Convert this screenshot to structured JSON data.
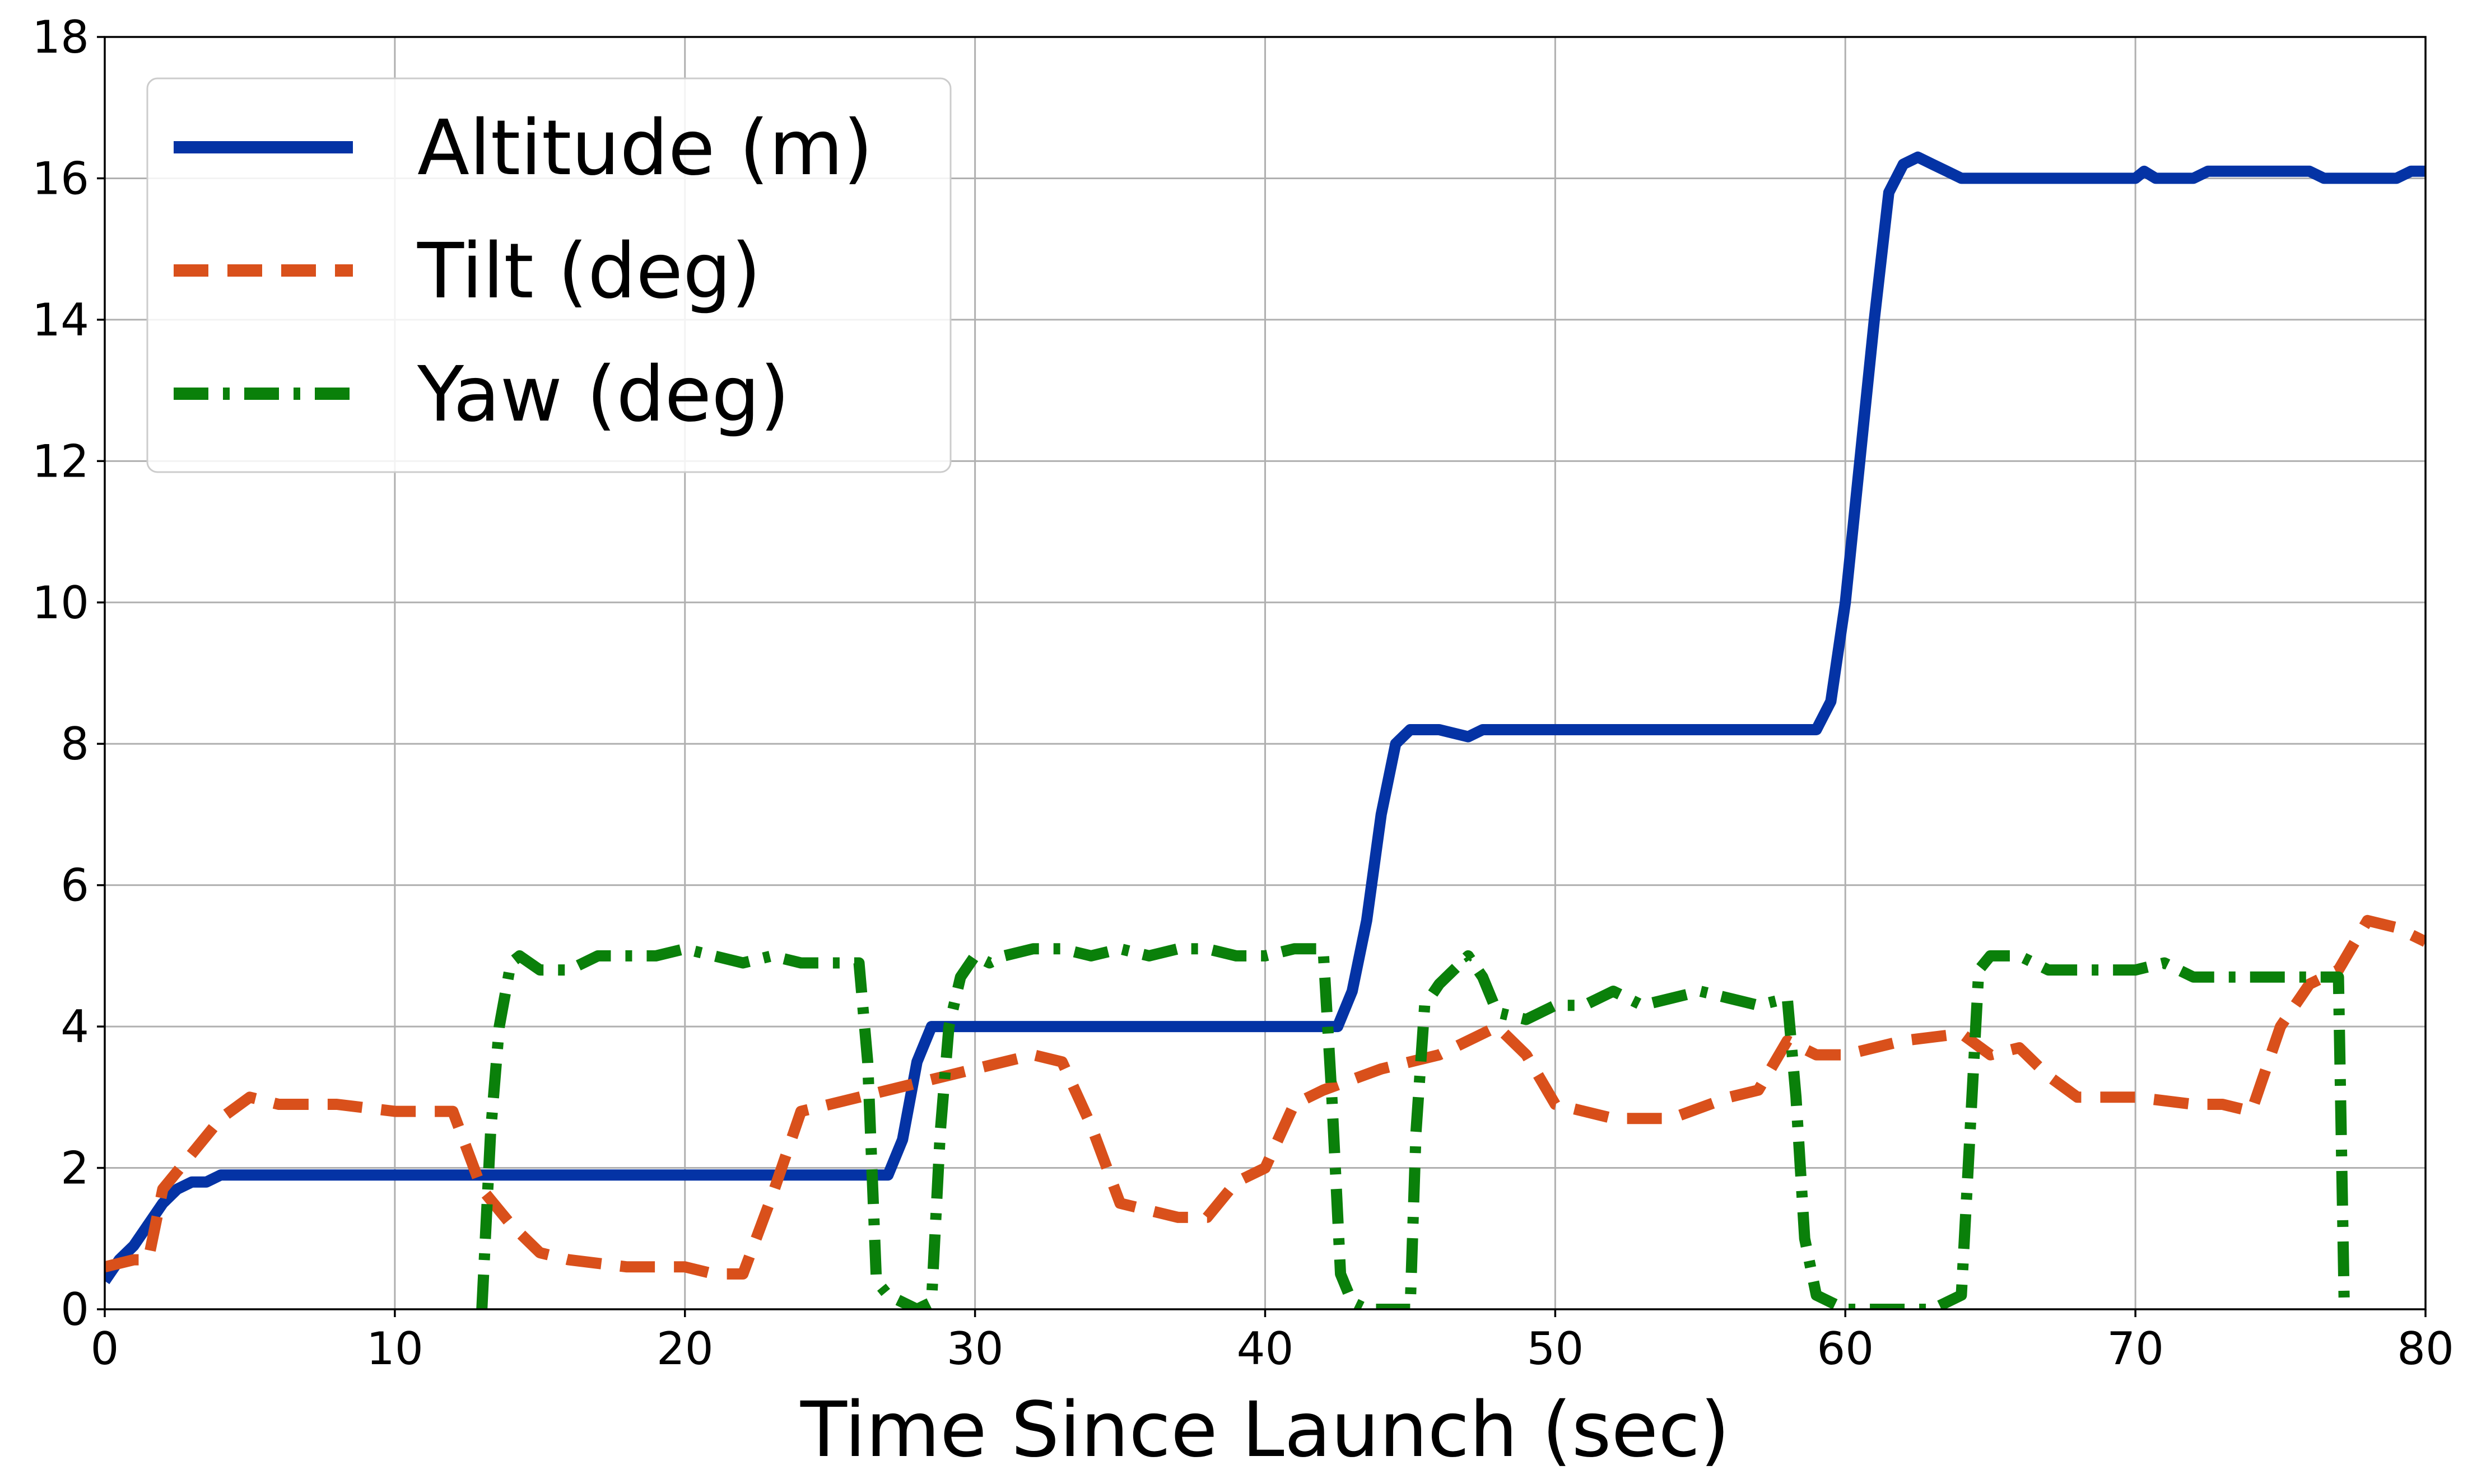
{
  "chart_data": {
    "type": "line",
    "title": "",
    "xlabel": "Time Since Launch (sec)",
    "ylabel": "",
    "xlim": [
      0,
      80
    ],
    "ylim": [
      0,
      18
    ],
    "xticks": [
      0,
      10,
      20,
      30,
      40,
      50,
      60,
      70,
      80
    ],
    "yticks": [
      0,
      2,
      4,
      6,
      8,
      10,
      12,
      14,
      16,
      18
    ],
    "grid": true,
    "legend_position": "top-left",
    "series": [
      {
        "name": "Altitude (m)",
        "color": "#0433a5",
        "style": "solid",
        "x": [
          0,
          0.5,
          1,
          1.5,
          2,
          2.5,
          3,
          3.5,
          4,
          6,
          10,
          15,
          20,
          25,
          27,
          27.5,
          28,
          28.5,
          29,
          30,
          35,
          40,
          42.5,
          43,
          43.5,
          44,
          44.5,
          45,
          46,
          47,
          47.5,
          50,
          55,
          59,
          59.5,
          60,
          60.5,
          61,
          61.5,
          62,
          62.5,
          63,
          63.5,
          64,
          66,
          70,
          70.3,
          70.7,
          71,
          72,
          72.5,
          75,
          76,
          76.5,
          79,
          79.5,
          80
        ],
        "y": [
          0.4,
          0.7,
          0.9,
          1.2,
          1.5,
          1.7,
          1.8,
          1.8,
          1.9,
          1.9,
          1.9,
          1.9,
          1.9,
          1.9,
          1.9,
          2.4,
          3.5,
          4.0,
          4.0,
          4.0,
          4.0,
          4.0,
          4.0,
          4.5,
          5.5,
          7.0,
          8.0,
          8.2,
          8.2,
          8.1,
          8.2,
          8.2,
          8.2,
          8.2,
          8.6,
          10.0,
          12.0,
          14.0,
          15.8,
          16.2,
          16.3,
          16.2,
          16.1,
          16.0,
          16.0,
          16.0,
          16.1,
          16.0,
          16.0,
          16.0,
          16.1,
          16.1,
          16.1,
          16.0,
          16.0,
          16.1,
          16.1
        ]
      },
      {
        "name": "Tilt (deg)",
        "color": "#d9501b",
        "style": "dashed",
        "x": [
          0,
          1,
          1.5,
          2,
          3,
          4,
          5,
          6,
          8,
          10,
          11,
          12,
          13,
          14,
          15,
          16,
          18,
          20,
          21,
          22,
          23,
          24,
          26,
          28,
          30,
          32,
          33,
          34,
          35,
          36,
          37,
          38,
          39,
          40,
          41,
          42,
          44,
          46,
          48,
          49,
          50,
          52,
          54,
          56,
          57,
          58,
          59,
          60,
          62,
          64,
          65,
          66,
          67,
          68,
          70,
          72,
          73,
          74,
          75,
          76,
          77,
          78,
          79,
          80
        ],
        "y": [
          0.6,
          0.7,
          0.7,
          1.7,
          2.2,
          2.7,
          3.0,
          2.9,
          2.9,
          2.8,
          2.8,
          2.8,
          1.7,
          1.2,
          0.8,
          0.7,
          0.6,
          0.6,
          0.5,
          0.5,
          1.6,
          2.8,
          3.0,
          3.2,
          3.4,
          3.6,
          3.5,
          2.6,
          1.5,
          1.4,
          1.3,
          1.3,
          1.8,
          2.0,
          2.9,
          3.1,
          3.4,
          3.6,
          4.0,
          3.6,
          2.9,
          2.7,
          2.7,
          3.0,
          3.1,
          3.8,
          3.6,
          3.6,
          3.8,
          3.9,
          3.6,
          3.7,
          3.3,
          3.0,
          3.0,
          2.9,
          2.9,
          2.8,
          4.0,
          4.6,
          4.8,
          5.5,
          5.4,
          5.2
        ]
      },
      {
        "name": "Yaw (deg)",
        "color": "#0a800a",
        "style": "dashdot",
        "x": [
          13,
          13.3,
          13.6,
          14,
          14.3,
          15,
          16,
          17,
          18,
          19,
          20,
          21,
          22,
          23,
          24,
          25,
          26,
          26.3,
          26.6,
          27,
          27.5,
          28,
          28.5,
          28.8,
          29.1,
          29.5,
          30,
          30.5,
          31,
          32,
          33,
          34,
          35,
          36,
          37,
          38,
          39,
          40,
          41,
          42,
          42.3,
          42.6,
          43,
          43.5,
          44,
          45,
          45.2,
          45.5,
          46,
          46.5,
          47,
          47.5,
          48,
          49,
          50,
          51,
          52,
          53,
          54,
          55,
          56,
          57,
          58,
          58.3,
          58.6,
          59,
          59.5,
          60,
          61,
          62,
          63,
          64,
          64.3,
          64.6,
          65,
          66,
          67,
          68,
          69,
          70,
          71,
          72,
          73,
          74,
          75,
          76,
          77,
          77.2
        ],
        "y": [
          0.0,
          2.5,
          4.0,
          4.9,
          5.0,
          4.8,
          4.8,
          5.0,
          5.0,
          5.0,
          5.1,
          5.0,
          4.9,
          5.0,
          4.9,
          4.9,
          4.9,
          3.5,
          0.4,
          0.2,
          0.1,
          0.0,
          0.1,
          2.5,
          4.0,
          4.7,
          5.0,
          4.9,
          5.0,
          5.1,
          5.1,
          5.0,
          5.1,
          5.0,
          5.1,
          5.1,
          5.0,
          5.0,
          5.1,
          5.1,
          3.0,
          0.5,
          0.1,
          0.0,
          0.0,
          0.0,
          2.5,
          4.3,
          4.6,
          4.8,
          5.0,
          4.7,
          4.2,
          4.1,
          4.3,
          4.3,
          4.5,
          4.3,
          4.4,
          4.5,
          4.4,
          4.3,
          4.4,
          3.0,
          1.0,
          0.2,
          0.1,
          0.0,
          0.0,
          0.0,
          0.0,
          0.2,
          2.5,
          4.8,
          5.0,
          5.0,
          4.8,
          4.8,
          4.8,
          4.8,
          4.9,
          4.7,
          4.7,
          4.7,
          4.7,
          4.7,
          4.7,
          0.0
        ]
      }
    ]
  }
}
